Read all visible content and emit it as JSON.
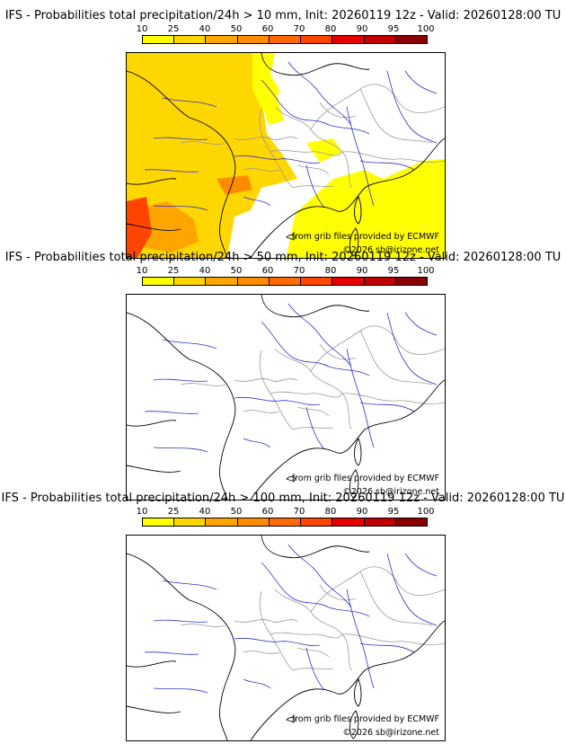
{
  "scale": {
    "labels": [
      "10",
      "25",
      "40",
      "50",
      "60",
      "70",
      "80",
      "90",
      "95",
      "100"
    ],
    "colors": [
      "#ffff00",
      "#ffd700",
      "#ffa500",
      "#ff8c00",
      "#ff6a00",
      "#ff4500",
      "#e60000",
      "#c00000",
      "#8b0000",
      "#550000"
    ]
  },
  "colors": {
    "rivers": "#3030d0",
    "borders": "#9a9a9a",
    "coast": "#000000"
  },
  "panels": [
    {
      "title": "IFS - Probabilities total precipitation/24h > 10 mm, Init: 20260119 12z - Valid: 20260128:00 TU",
      "source": "from grib files provided by ECMWF",
      "copyright": "©2026 sb@irizone.net",
      "has_precipitation": true
    },
    {
      "title": "IFS - Probabilities total precipitation/24h > 50 mm, Init: 20260119 12z - Valid: 20260128:00 TU",
      "source": "from grib files provided by ECMWF",
      "copyright": "©2026 sb@irizone.net",
      "has_precipitation": false
    },
    {
      "title": "IFS - Probabilities total precipitation/24h > 100 mm, Init: 20260119 12z - Valid: 20260128:00 TU",
      "source": "from grib files provided by ECMWF",
      "copyright": "©2026 sb@irizone.net",
      "has_precipitation": false
    }
  ]
}
